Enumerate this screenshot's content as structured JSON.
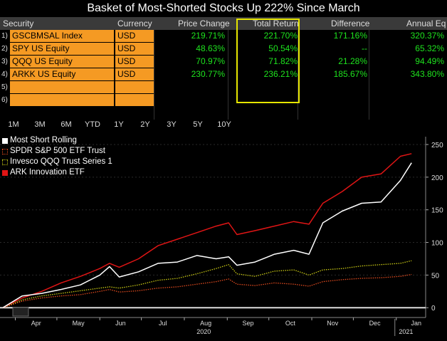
{
  "title": "Basket of Most-Shorted Stocks Up 222% Since March",
  "table": {
    "headers": [
      "Security",
      "Currency",
      "Price Change",
      "Total Return",
      "Difference",
      "Annual Eq"
    ],
    "rows": [
      {
        "num": "1)",
        "security": "GSCBMSAL Index",
        "currency": "USD",
        "price_change": "219.71%",
        "total_return": "221.70%",
        "difference": "171.16%",
        "annual_eq": "320.37%"
      },
      {
        "num": "2)",
        "security": "SPY US Equity",
        "currency": "USD",
        "price_change": "48.63%",
        "total_return": "50.54%",
        "difference": "--",
        "annual_eq": "65.32%"
      },
      {
        "num": "3)",
        "security": "QQQ US Equity",
        "currency": "USD",
        "price_change": "70.97%",
        "total_return": "71.82%",
        "difference": "21.28%",
        "annual_eq": "94.49%"
      },
      {
        "num": "4)",
        "security": "ARKK US Equity",
        "currency": "USD",
        "price_change": "230.77%",
        "total_return": "236.21%",
        "difference": "185.67%",
        "annual_eq": "343.80%"
      },
      {
        "num": "5)",
        "security": "",
        "currency": "",
        "price_change": "",
        "total_return": "",
        "difference": "",
        "annual_eq": ""
      },
      {
        "num": "6)",
        "security": "",
        "currency": "",
        "price_change": "",
        "total_return": "",
        "difference": "",
        "annual_eq": ""
      }
    ]
  },
  "tabs": [
    "1M",
    "3M",
    "6M",
    "YTD",
    "1Y",
    "2Y",
    "3Y",
    "5Y",
    "10Y"
  ],
  "chart_data": {
    "type": "line",
    "title": "",
    "xlabel": "",
    "ylabel": "",
    "x_ticks": [
      "Apr",
      "May",
      "Jun",
      "Jul",
      "Aug",
      "Sep",
      "Oct",
      "Nov",
      "Dec",
      "Jan"
    ],
    "x_sublabels": [
      "2020",
      "2021"
    ],
    "y_ticks": [
      0,
      50,
      100,
      150,
      200,
      250
    ],
    "ylim": [
      -15,
      262
    ],
    "legend_position": "top-left",
    "x": [
      "2020-03-23",
      "2020-04-06",
      "2020-04-20",
      "2020-05-04",
      "2020-05-18",
      "2020-06-01",
      "2020-06-08",
      "2020-06-15",
      "2020-06-29",
      "2020-07-13",
      "2020-07-27",
      "2020-08-10",
      "2020-08-24",
      "2020-09-02",
      "2020-09-08",
      "2020-09-21",
      "2020-10-05",
      "2020-10-19",
      "2020-10-30",
      "2020-11-09",
      "2020-11-23",
      "2020-12-07",
      "2020-12-21",
      "2021-01-04",
      "2021-01-12"
    ],
    "series": [
      {
        "name": "Most Short Rolling",
        "color": "#ffffff",
        "style": "solid",
        "values": [
          0,
          18,
          22,
          28,
          35,
          50,
          63,
          47,
          55,
          68,
          70,
          80,
          75,
          78,
          65,
          70,
          82,
          88,
          82,
          130,
          148,
          160,
          162,
          195,
          222
        ]
      },
      {
        "name": "SPDR S&P 500 ETF Trust",
        "color": "#e04a1e",
        "style": "dotted",
        "values": [
          0,
          10,
          15,
          18,
          20,
          25,
          28,
          24,
          26,
          30,
          32,
          36,
          40,
          44,
          36,
          34,
          38,
          36,
          33,
          40,
          43,
          45,
          46,
          48,
          51
        ]
      },
      {
        "name": "Invesco QQQ Trust Series 1",
        "color": "#c8c814",
        "style": "dotted",
        "values": [
          0,
          12,
          18,
          22,
          26,
          30,
          32,
          30,
          35,
          42,
          45,
          52,
          60,
          66,
          52,
          48,
          56,
          58,
          50,
          58,
          60,
          64,
          66,
          68,
          72
        ]
      },
      {
        "name": "ARK Innovation ETF",
        "color": "#e01515",
        "style": "solid",
        "values": [
          0,
          15,
          25,
          38,
          48,
          60,
          68,
          62,
          75,
          95,
          105,
          115,
          125,
          130,
          112,
          118,
          125,
          132,
          128,
          160,
          178,
          200,
          205,
          232,
          236
        ]
      }
    ]
  }
}
